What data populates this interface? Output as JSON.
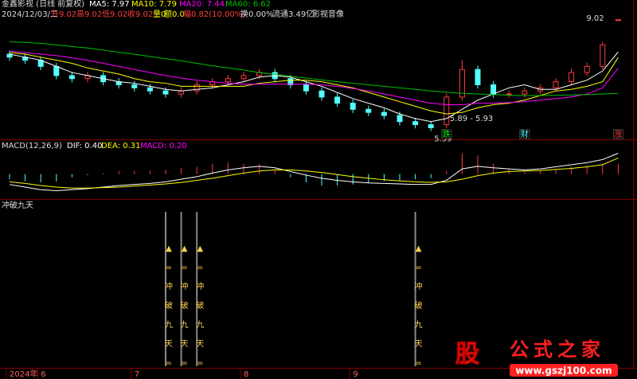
{
  "chart_data": {
    "type": "candlestick",
    "header": {
      "name": "金鑫影视 (日线 前复权)",
      "ma5": "MA5: 7.97",
      "ma10": "MA10: 7.79",
      "ma20": "MA20: 7.44",
      "ma60": "MA60: 6.62"
    },
    "info": {
      "date": "2024/12/03/二",
      "open": "开9.02",
      "high": "高9.02",
      "low": "低9.02",
      "close": "收9.02",
      "vol": "量0",
      "amount": "额0.0",
      "range": "幅0.82(10.00%)",
      "turnover": "换0.00%",
      "float": "流通3.49亿",
      "sector": "影视音像"
    },
    "categories": [
      "2024年",
      null,
      "6",
      null,
      null,
      null,
      null,
      null,
      "7",
      null,
      null,
      null,
      null,
      null,
      null,
      "8",
      null,
      null,
      null,
      null,
      null,
      null,
      "9",
      null,
      null,
      null,
      null,
      null,
      null,
      null,
      null,
      null,
      null,
      null,
      null,
      null,
      null,
      null,
      null,
      null
    ],
    "open": [
      7.9,
      7.8,
      7.7,
      7.5,
      7.2,
      7.1,
      7.2,
      7.0,
      6.9,
      6.8,
      6.7,
      6.6,
      6.7,
      6.9,
      7.0,
      7.1,
      7.2,
      7.3,
      7.1,
      6.9,
      6.7,
      6.5,
      6.3,
      6.1,
      6.0,
      5.9,
      5.7,
      5.6,
      5.6,
      6.5,
      7.4,
      6.9,
      6.6,
      6.6,
      6.7,
      6.8,
      7.0,
      7.3,
      7.5,
      9.02
    ],
    "high": [
      8.02,
      7.92,
      7.82,
      7.62,
      7.32,
      7.32,
      7.32,
      7.12,
      7.02,
      6.92,
      6.82,
      6.82,
      7.02,
      7.12,
      7.22,
      7.32,
      7.42,
      7.42,
      7.22,
      7.02,
      6.82,
      6.62,
      6.42,
      6.22,
      6.12,
      6.02,
      5.82,
      5.72,
      6.62,
      7.7,
      7.52,
      7.02,
      6.72,
      6.82,
      6.92,
      7.12,
      7.42,
      7.62,
      8.3,
      9.02
    ],
    "low": [
      7.68,
      7.58,
      7.38,
      7.08,
      6.98,
      6.98,
      6.88,
      6.78,
      6.68,
      6.58,
      6.48,
      6.48,
      6.58,
      6.78,
      6.88,
      6.98,
      7.08,
      6.98,
      6.78,
      6.58,
      6.38,
      6.18,
      5.98,
      5.88,
      5.78,
      5.58,
      5.48,
      5.39,
      5.48,
      6.38,
      6.78,
      6.48,
      6.48,
      6.48,
      6.58,
      6.68,
      6.88,
      7.18,
      7.4,
      9.02
    ],
    "close": [
      7.8,
      7.7,
      7.5,
      7.2,
      7.1,
      7.2,
      7.0,
      6.9,
      6.8,
      6.7,
      6.6,
      6.7,
      6.9,
      7.0,
      7.1,
      7.2,
      7.3,
      7.1,
      6.9,
      6.7,
      6.5,
      6.3,
      6.1,
      6.0,
      5.9,
      5.7,
      5.6,
      5.5,
      6.5,
      7.4,
      6.9,
      6.6,
      6.6,
      6.7,
      6.8,
      7.0,
      7.3,
      7.5,
      8.2,
      9.02
    ],
    "up_color": "#ff3c3c",
    "down_color": "#54ffff",
    "ylim": [
      5.2,
      9.3
    ],
    "series": [
      {
        "name": "MA5",
        "color": "#ffffff",
        "values": [
          7.9,
          7.8,
          7.7,
          7.5,
          7.3,
          7.2,
          7.1,
          7.0,
          6.95,
          6.85,
          6.75,
          6.7,
          6.75,
          6.8,
          6.9,
          7.0,
          7.15,
          7.2,
          7.15,
          7.0,
          6.85,
          6.65,
          6.45,
          6.3,
          6.15,
          5.95,
          5.8,
          5.7,
          5.8,
          6.1,
          6.4,
          6.6,
          6.8,
          6.9,
          6.75,
          6.75,
          6.9,
          7.05,
          7.35,
          7.97
        ]
      },
      {
        "name": "MA10",
        "color": "#ffff00",
        "values": [
          7.95,
          7.9,
          7.8,
          7.7,
          7.6,
          7.45,
          7.35,
          7.25,
          7.1,
          7.0,
          6.95,
          6.85,
          6.85,
          6.85,
          6.85,
          6.85,
          6.95,
          7.0,
          7.05,
          7.05,
          7.0,
          6.9,
          6.8,
          6.65,
          6.5,
          6.35,
          6.2,
          6.05,
          5.95,
          6.0,
          6.15,
          6.25,
          6.3,
          6.4,
          6.55,
          6.7,
          6.75,
          6.85,
          7.0,
          7.79
        ]
      },
      {
        "name": "MA20",
        "color": "#ff00ff",
        "values": [
          8.0,
          7.95,
          7.9,
          7.85,
          7.78,
          7.7,
          7.6,
          7.5,
          7.4,
          7.3,
          7.2,
          7.12,
          7.05,
          7.0,
          6.95,
          6.92,
          6.92,
          6.92,
          6.92,
          6.92,
          6.9,
          6.85,
          6.78,
          6.7,
          6.6,
          6.5,
          6.4,
          6.3,
          6.25,
          6.25,
          6.3,
          6.3,
          6.32,
          6.35,
          6.4,
          6.45,
          6.5,
          6.6,
          6.8,
          7.44
        ]
      },
      {
        "name": "MA60",
        "color": "#00c000",
        "values": [
          8.3,
          8.28,
          8.25,
          8.2,
          8.15,
          8.1,
          8.03,
          7.96,
          7.9,
          7.82,
          7.75,
          7.68,
          7.6,
          7.52,
          7.45,
          7.38,
          7.3,
          7.24,
          7.18,
          7.12,
          7.06,
          7.0,
          6.95,
          6.9,
          6.85,
          6.8,
          6.75,
          6.7,
          6.66,
          6.62,
          6.6,
          6.58,
          6.56,
          6.55,
          6.55,
          6.56,
          6.57,
          6.58,
          6.6,
          6.62
        ]
      }
    ],
    "annotations": [
      {
        "text": "9.02",
        "index": 39
      },
      {
        "text": "5.39",
        "index": 27
      },
      {
        "text": "5.89 - 5.93",
        "index": 28
      }
    ],
    "tags": [
      {
        "text": "跌",
        "index": 28,
        "color": "#00ff00"
      },
      {
        "text": "财",
        "index": 33,
        "color": "#54ffff"
      },
      {
        "text": "涨",
        "index": 39,
        "color": "#ff3c3c"
      }
    ],
    "macd": {
      "title": "MACD(12,26,9)",
      "dif_label": "DIF: 0.40",
      "dea_label": "DEA: 0.31",
      "macd_label": "MACD: 0.20",
      "ylim": [
        -0.45,
        0.5
      ],
      "dif": [
        -0.2,
        -0.25,
        -0.3,
        -0.32,
        -0.3,
        -0.28,
        -0.25,
        -0.22,
        -0.2,
        -0.18,
        -0.15,
        -0.1,
        -0.05,
        0.02,
        0.08,
        0.12,
        0.15,
        0.12,
        0.05,
        -0.02,
        -0.08,
        -0.12,
        -0.15,
        -0.17,
        -0.18,
        -0.19,
        -0.2,
        -0.2,
        -0.12,
        0.1,
        0.15,
        0.12,
        0.1,
        0.08,
        0.1,
        0.14,
        0.18,
        0.22,
        0.28,
        0.4
      ],
      "dea": [
        -0.15,
        -0.18,
        -0.22,
        -0.25,
        -0.27,
        -0.27,
        -0.26,
        -0.25,
        -0.23,
        -0.21,
        -0.19,
        -0.16,
        -0.12,
        -0.08,
        -0.03,
        0.02,
        0.06,
        0.08,
        0.08,
        0.06,
        0.03,
        -0.01,
        -0.05,
        -0.08,
        -0.11,
        -0.13,
        -0.15,
        -0.16,
        -0.15,
        -0.1,
        -0.03,
        0.02,
        0.05,
        0.06,
        0.07,
        0.09,
        0.11,
        0.14,
        0.18,
        0.31
      ],
      "hist": [
        -0.1,
        -0.14,
        -0.16,
        -0.14,
        -0.06,
        -0.02,
        0.02,
        0.06,
        0.06,
        0.06,
        0.08,
        0.12,
        0.14,
        0.2,
        0.22,
        0.2,
        0.18,
        0.08,
        -0.06,
        -0.16,
        -0.22,
        -0.22,
        -0.2,
        -0.18,
        -0.14,
        -0.12,
        -0.1,
        -0.08,
        0.06,
        0.4,
        0.36,
        0.2,
        0.1,
        0.04,
        0.06,
        0.1,
        0.14,
        0.16,
        0.2,
        0.2
      ],
      "dif_color": "#ffffff",
      "dea_color": "#ffff00"
    },
    "indicator": {
      "title": "冲破九天",
      "signal_candles": [
        10,
        11,
        12,
        26
      ],
      "signal_text": [
        "▲",
        "=",
        "冲",
        "破",
        "九",
        "天",
        "="
      ]
    },
    "watermark": {
      "badge": "股",
      "name": "公式之家",
      "url": "www.gszj100.com"
    }
  }
}
